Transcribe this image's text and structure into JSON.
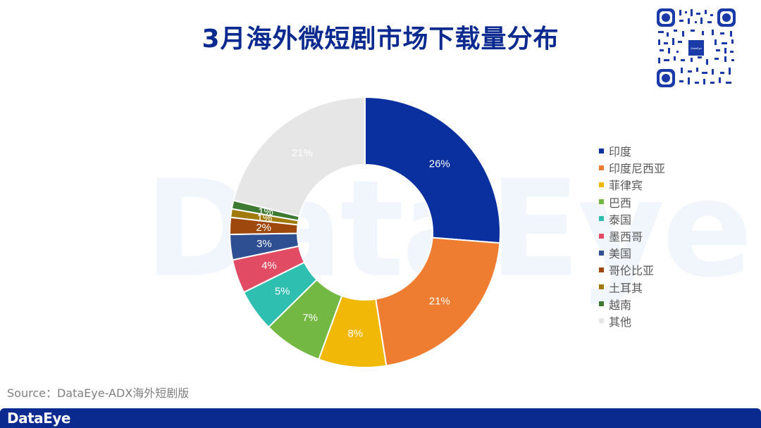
{
  "title": "3月海外微短剧市场下载量分布",
  "watermark": "DataEye",
  "source": "Source：DataEye-ADX海外短剧版",
  "footer": {
    "logo": "DataEye",
    "color": "#0b2a8f"
  },
  "qr": {
    "center_label": "DataEye"
  },
  "chart_data": {
    "type": "pie",
    "variant": "donut",
    "title": "3月海外微短剧市场下载量分布",
    "legend_position": "right",
    "categories": [
      "印度",
      "印度尼西亚",
      "菲律宾",
      "巴西",
      "泰国",
      "墨西哥",
      "美国",
      "哥伦比亚",
      "土耳其",
      "越南",
      "其他"
    ],
    "values": [
      26,
      21,
      8,
      7,
      5,
      4,
      3,
      2,
      1,
      1,
      21
    ],
    "labels": [
      "26%",
      "21%",
      "8%",
      "7%",
      "5%",
      "4%",
      "3%",
      "2%",
      "1%",
      "1%",
      "21%"
    ],
    "colors": [
      "#0a2f9e",
      "#ee7d31",
      "#f2b807",
      "#72b843",
      "#2ebfb1",
      "#e14b63",
      "#2e4f92",
      "#9e480e",
      "#a07a0a",
      "#3e7a32",
      "#e6e6e6"
    ],
    "unit": "%"
  },
  "legend": [
    {
      "label": "印度",
      "color": "#0a2f9e"
    },
    {
      "label": "印度尼西亚",
      "color": "#ee7d31"
    },
    {
      "label": "菲律宾",
      "color": "#f2b807"
    },
    {
      "label": "巴西",
      "color": "#72b843"
    },
    {
      "label": "泰国",
      "color": "#2ebfb1"
    },
    {
      "label": "墨西哥",
      "color": "#e14b63"
    },
    {
      "label": "美国",
      "color": "#2e4f92"
    },
    {
      "label": "哥伦比亚",
      "color": "#9e480e"
    },
    {
      "label": "土耳其",
      "color": "#a07a0a"
    },
    {
      "label": "越南",
      "color": "#3e7a32"
    },
    {
      "label": "其他",
      "color": "#e6e6e6"
    }
  ]
}
